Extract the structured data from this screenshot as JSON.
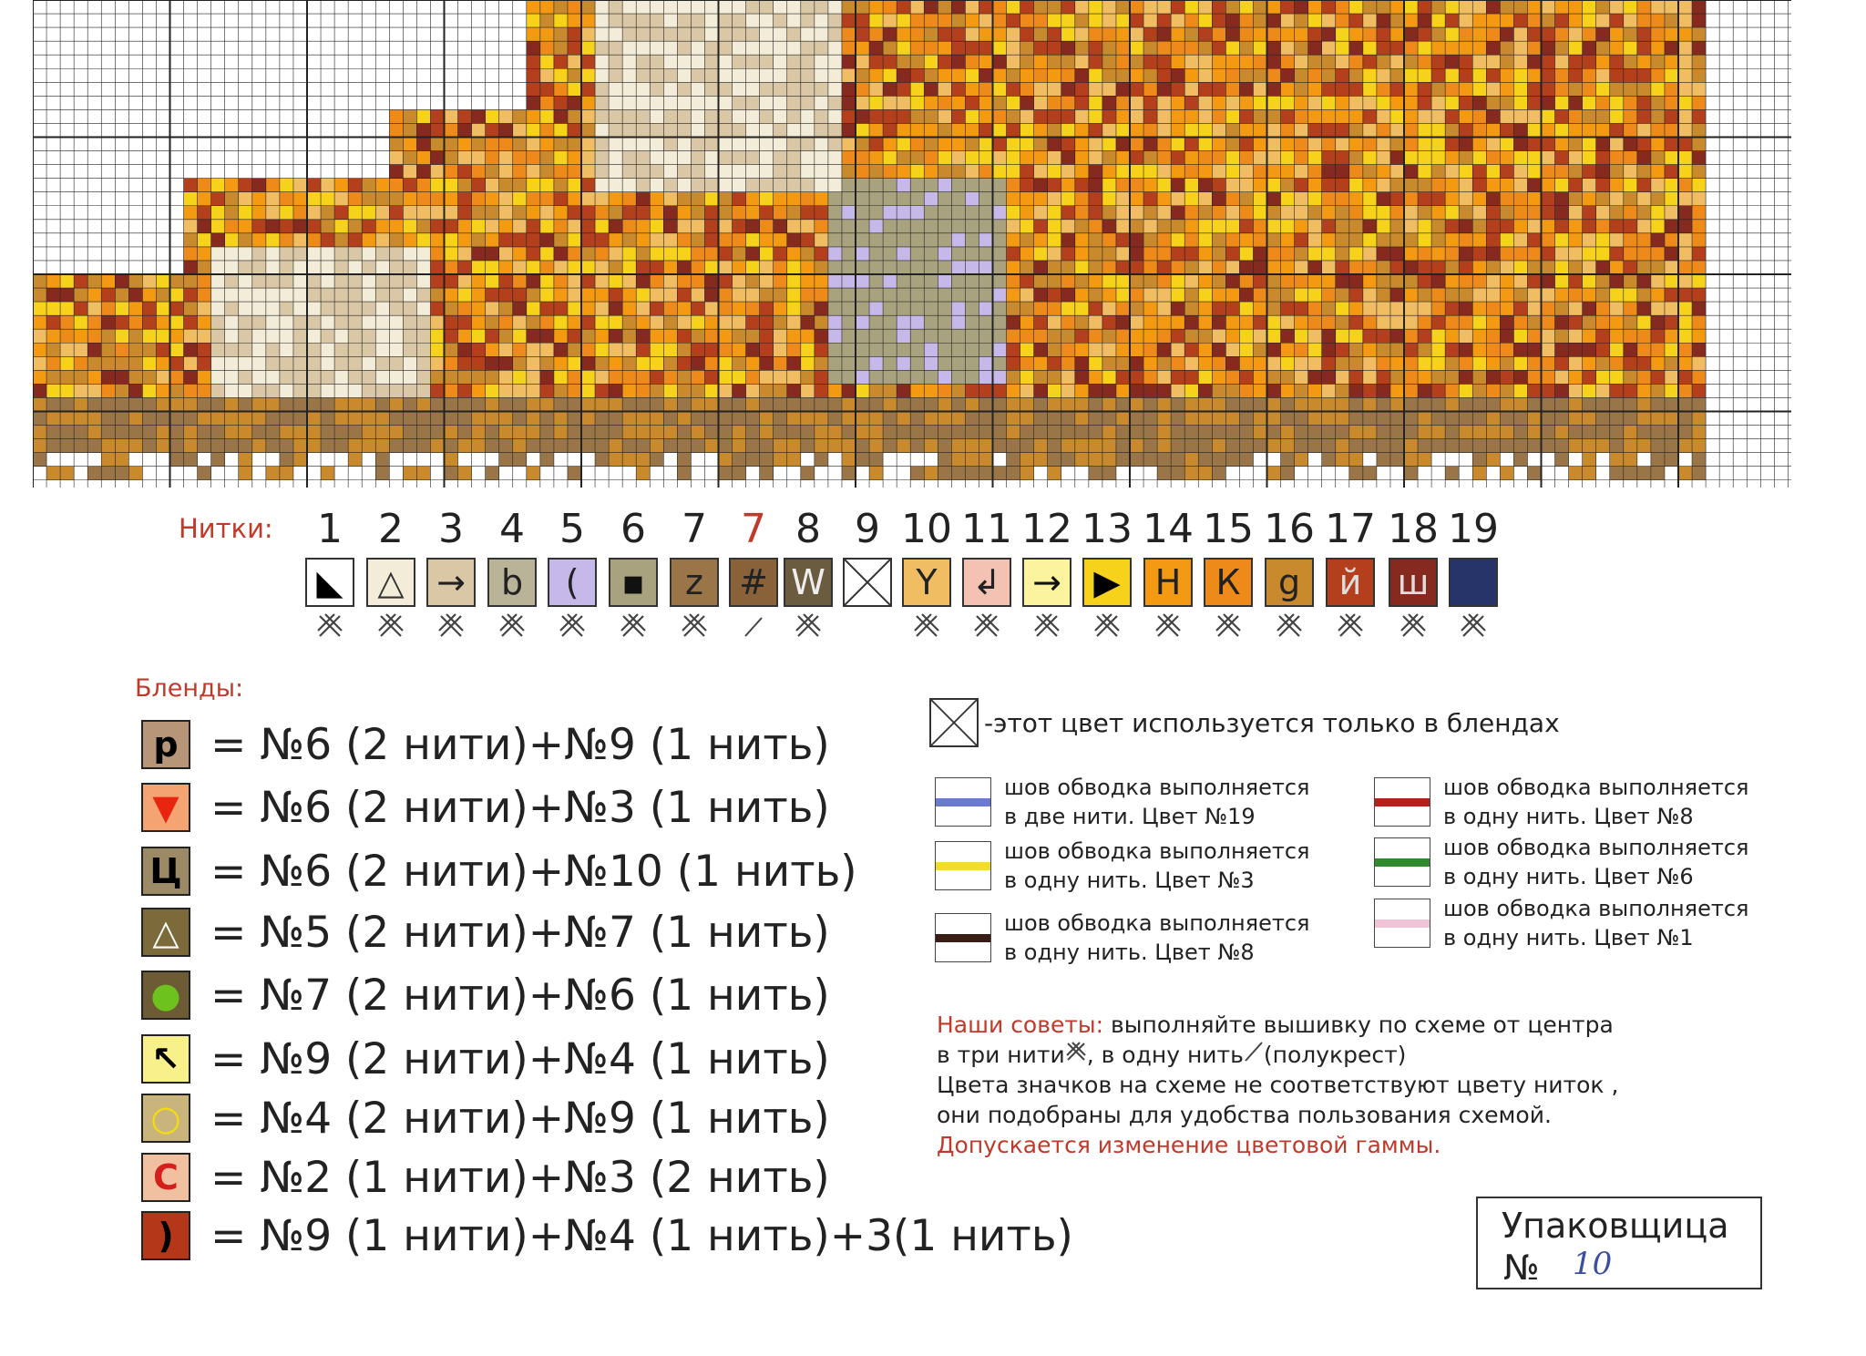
{
  "threads": {
    "label": "Нитки:",
    "items": [
      {
        "num": "1",
        "sym": "◣",
        "color": "#ffffff",
        "fg": "#000000",
        "stitch": "full"
      },
      {
        "num": "2",
        "sym": "△",
        "color": "#f2ecd8",
        "fg": "#333333",
        "stitch": "full"
      },
      {
        "num": "3",
        "sym": "→",
        "color": "#d9c7a6",
        "fg": "#222222",
        "stitch": "full"
      },
      {
        "num": "4",
        "sym": "b",
        "color": "#b9b398",
        "fg": "#222222",
        "stitch": "full"
      },
      {
        "num": "5",
        "sym": "(",
        "color": "#c7b8ea",
        "fg": "#222222",
        "stitch": "full"
      },
      {
        "num": "6",
        "sym": "▪",
        "color": "#a9a27e",
        "fg": "#111111",
        "stitch": "full"
      },
      {
        "num": "7",
        "sym": "z",
        "color": "#9a7548",
        "fg": "#222222",
        "stitch": "full"
      },
      {
        "num": "7",
        "sym": "#",
        "color": "#8a6239",
        "fg": "#222222",
        "stitch": "half",
        "red": true
      },
      {
        "num": "8",
        "sym": "W",
        "color": "#6c5c3f",
        "fg": "#eeeeee",
        "stitch": "full"
      },
      {
        "num": "9",
        "sym": "",
        "color": "#ffffff",
        "fg": "#333333",
        "stitch": "none",
        "cross": true
      },
      {
        "num": "10",
        "sym": "Y",
        "color": "#f0bd63",
        "fg": "#222222",
        "stitch": "full"
      },
      {
        "num": "11",
        "sym": "↲",
        "color": "#f4c2b3",
        "fg": "#222222",
        "stitch": "full"
      },
      {
        "num": "12",
        "sym": "→",
        "color": "#fbf39d",
        "fg": "#111111",
        "stitch": "full"
      },
      {
        "num": "13",
        "sym": "▶",
        "color": "#f6d21b",
        "fg": "#000000",
        "stitch": "full"
      },
      {
        "num": "14",
        "sym": "Н",
        "color": "#f39a12",
        "fg": "#222222",
        "stitch": "full"
      },
      {
        "num": "15",
        "sym": "К",
        "color": "#ee8a1a",
        "fg": "#222222",
        "stitch": "full"
      },
      {
        "num": "16",
        "sym": "g",
        "color": "#c88a2c",
        "fg": "#222222",
        "stitch": "full"
      },
      {
        "num": "17",
        "sym": "й",
        "color": "#b33f1c",
        "fg": "#dddddd",
        "stitch": "full"
      },
      {
        "num": "18",
        "sym": "ш",
        "color": "#862a20",
        "fg": "#dddddd",
        "stitch": "full"
      },
      {
        "num": "19",
        "sym": "",
        "color": "#26346a",
        "fg": "#ffffff",
        "stitch": "full"
      }
    ]
  },
  "blends": {
    "title": "Бленды:",
    "items": [
      {
        "sym": "р",
        "color": "#b69579",
        "fg": "#000000",
        "text": "= №6 (2 нити)+№9 (1 нить)"
      },
      {
        "sym": "▼",
        "color": "#f4a373",
        "fg": "#e8250f",
        "text": "= №6 (2 нити)+№3 (1 нить)"
      },
      {
        "sym": "Ц",
        "color": "#9c8a67",
        "fg": "#000000",
        "text": "= №6 (2 нити)+№10 (1 нить)"
      },
      {
        "sym": "△",
        "color": "#7c6a3b",
        "fg": "#ffffff",
        "text": "= №5 (2 нити)+№7 (1 нить)"
      },
      {
        "sym": "●",
        "color": "#6c5b34",
        "fg": "#6ec21e",
        "text": "= №7 (2 нити)+№6 (1 нить)"
      },
      {
        "sym": "↖",
        "color": "#f8f08a",
        "fg": "#000000",
        "text": "= №9 (2 нити)+№4 (1 нить)"
      },
      {
        "sym": "○",
        "color": "#c9b57c",
        "fg": "#f3dd10",
        "text": "= №4 (2 нити)+№9 (1 нить)"
      },
      {
        "sym": "С",
        "color": "#f0c0a0",
        "fg": "#d4201c",
        "text": "= №2 (1 нити)+№3 (2 нить)"
      },
      {
        "sym": ")",
        "color": "#b4371a",
        "fg": "#000000",
        "text": "= №9 (1 нити)+№4 (1 нить)+3(1 нить)"
      }
    ]
  },
  "blend_only_note": "-этот цвет используется только в блендах",
  "outline_legend": [
    {
      "line1": "шов обводка выполняется",
      "line2": "в две нити. Цвет №19",
      "color": "#6a7bc9"
    },
    {
      "line1": "шов обводка выполняется",
      "line2": "в одну нить. Цвет №3",
      "color": "#f2dd2a"
    },
    {
      "line1": "шов обводка выполняется",
      "line2": "в одну нить. Цвет №8",
      "color": "#3a1e16"
    },
    {
      "line1": "шов обводка выполняется",
      "line2": "в одну нить. Цвет №8",
      "color": "#b5201b"
    },
    {
      "line1": "шов обводка выполняется",
      "line2": "в одну нить. Цвет №6",
      "color": "#2f8a2e"
    },
    {
      "line1": "шов обводка выполняется",
      "line2": "в одну нить. Цвет №1",
      "color": "#f0c3d6"
    }
  ],
  "tips": {
    "heading": "Наши советы:",
    "line1": " выполняйте вышивку по схеме от центра",
    "line2": "в три нити",
    "line2b": ", в одну нить",
    "line2c": "(полукрест)",
    "line3": "Цвета значков на схеме не соответствуют цвету ниток ,",
    "line4": " они подобраны для удобства пользования схемой.",
    "line5": "Допускается изменение цветовой гаммы."
  },
  "packer": {
    "title": "Упаковщица",
    "num_label": "№",
    "handwritten": "10"
  },
  "colors": {
    "accent_red": "#c0392b"
  }
}
